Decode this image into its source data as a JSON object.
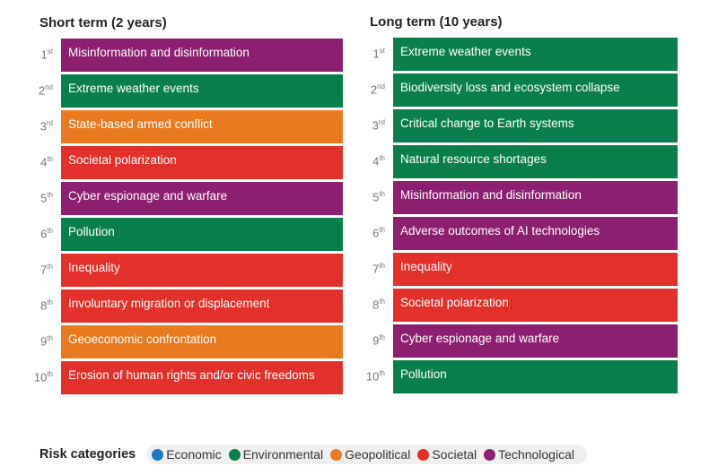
{
  "colors": {
    "Economic": "#1b79c4",
    "Environmental": "#0b7f4b",
    "Geopolitical": "#e97a1f",
    "Societal": "#e2302a",
    "Technological": "#8c1f70"
  },
  "short_term": {
    "title": "Short term (2 years)",
    "items": [
      {
        "rank": "1",
        "suffix": "st",
        "label": "Misinformation and disinformation",
        "category": "Technological"
      },
      {
        "rank": "2",
        "suffix": "nd",
        "label": "Extreme weather events",
        "category": "Environmental"
      },
      {
        "rank": "3",
        "suffix": "rd",
        "label": "State-based armed conflict",
        "category": "Geopolitical"
      },
      {
        "rank": "4",
        "suffix": "th",
        "label": "Societal polarization",
        "category": "Societal"
      },
      {
        "rank": "5",
        "suffix": "th",
        "label": "Cyber espionage and warfare",
        "category": "Technological"
      },
      {
        "rank": "6",
        "suffix": "th",
        "label": "Pollution",
        "category": "Environmental"
      },
      {
        "rank": "7",
        "suffix": "th",
        "label": "Inequality",
        "category": "Societal"
      },
      {
        "rank": "8",
        "suffix": "th",
        "label": "Involuntary migration or displacement",
        "category": "Societal"
      },
      {
        "rank": "9",
        "suffix": "th",
        "label": "Geoeconomic confrontation",
        "category": "Geopolitical"
      },
      {
        "rank": "10",
        "suffix": "th",
        "label": "Erosion of human rights and/or civic freedoms",
        "category": "Societal"
      }
    ]
  },
  "long_term": {
    "title": "Long term (10 years)",
    "items": [
      {
        "rank": "1",
        "suffix": "st",
        "label": "Extreme weather events",
        "category": "Environmental"
      },
      {
        "rank": "2",
        "suffix": "nd",
        "label": "Biodiversity loss and ecosystem collapse",
        "category": "Environmental"
      },
      {
        "rank": "3",
        "suffix": "rd",
        "label": "Critical change to Earth systems",
        "category": "Environmental"
      },
      {
        "rank": "4",
        "suffix": "th",
        "label": "Natural resource shortages",
        "category": "Environmental"
      },
      {
        "rank": "5",
        "suffix": "th",
        "label": "Misinformation and disinformation",
        "category": "Technological"
      },
      {
        "rank": "6",
        "suffix": "th",
        "label": "Adverse outcomes of AI technologies",
        "category": "Technological"
      },
      {
        "rank": "7",
        "suffix": "th",
        "label": "Inequality",
        "category": "Societal"
      },
      {
        "rank": "8",
        "suffix": "th",
        "label": "Societal polarization",
        "category": "Societal"
      },
      {
        "rank": "9",
        "suffix": "th",
        "label": "Cyber espionage and warfare",
        "category": "Technological"
      },
      {
        "rank": "10",
        "suffix": "th",
        "label": "Pollution",
        "category": "Environmental"
      }
    ]
  },
  "legend": {
    "title": "Risk categories",
    "items": [
      "Economic",
      "Environmental",
      "Geopolitical",
      "Societal",
      "Technological"
    ]
  }
}
